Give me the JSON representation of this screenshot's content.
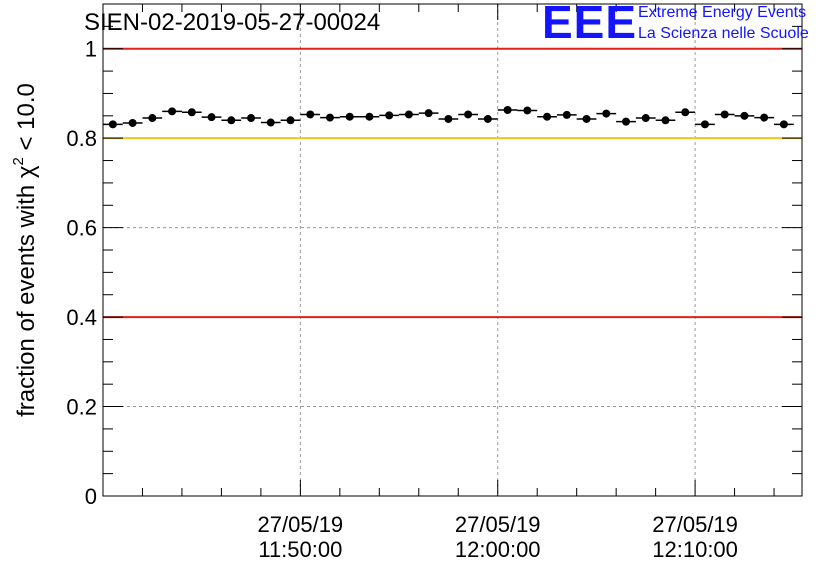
{
  "chart_data": {
    "type": "scatter",
    "title": "SIEN-02-2019-05-27-00024",
    "ylabel": "fraction of events with χ² < 10.0",
    "ylabel_main": "fraction of events with χ",
    "ylabel_sup": "2",
    "ylabel_tail": " < 10.0",
    "ylim": [
      0,
      1.1
    ],
    "yticks": [
      0,
      0.2,
      0.4,
      0.6,
      0.8,
      1
    ],
    "ytick_labels": [
      "0",
      "0.2",
      "0.4",
      "0.6",
      "0.8",
      "1"
    ],
    "xlim": [
      "27/05/19 11:40:00",
      "27/05/19 12:15:25"
    ],
    "xticks": [
      {
        "t": "27/05/19 11:50:00",
        "date": "27/05/19",
        "time": "11:50:00"
      },
      {
        "t": "27/05/19 12:00:00",
        "date": "27/05/19",
        "time": "12:00:00"
      },
      {
        "t": "27/05/19 12:10:00",
        "date": "27/05/19",
        "time": "12:10:00"
      }
    ],
    "grid": true,
    "reference_lines": [
      {
        "y": 1.0,
        "color": "#e0201b"
      },
      {
        "y": 0.8,
        "color": "#f5c518"
      },
      {
        "y": 0.4,
        "color": "#e0201b"
      }
    ],
    "series": [
      {
        "marker_color": "#000000",
        "x": [
          "11:40:30",
          "11:41:30",
          "11:42:30",
          "11:43:30",
          "11:44:30",
          "11:45:30",
          "11:46:30",
          "11:47:30",
          "11:48:30",
          "11:49:30",
          "11:50:30",
          "11:51:30",
          "11:52:30",
          "11:53:30",
          "11:54:30",
          "11:55:30",
          "11:56:30",
          "11:57:30",
          "11:58:30",
          "11:59:30",
          "12:00:30",
          "12:01:30",
          "12:02:30",
          "12:03:30",
          "12:04:30",
          "12:05:30",
          "12:06:30",
          "12:07:30",
          "12:08:30",
          "12:09:30",
          "12:10:30",
          "12:11:30",
          "12:12:30",
          "12:13:30",
          "12:14:30"
        ],
        "y": [
          0.831,
          0.834,
          0.845,
          0.86,
          0.858,
          0.847,
          0.84,
          0.845,
          0.835,
          0.84,
          0.853,
          0.846,
          0.848,
          0.848,
          0.851,
          0.853,
          0.856,
          0.843,
          0.853,
          0.843,
          0.863,
          0.862,
          0.848,
          0.852,
          0.843,
          0.855,
          0.837,
          0.845,
          0.84,
          0.858,
          0.831,
          0.853,
          0.85,
          0.846,
          0.831
        ]
      }
    ]
  },
  "logo": {
    "mark": "EEE",
    "line1": "Extreme Energy Events",
    "line2": "La Scienza nelle Scuole",
    "color": "#1414ff"
  }
}
